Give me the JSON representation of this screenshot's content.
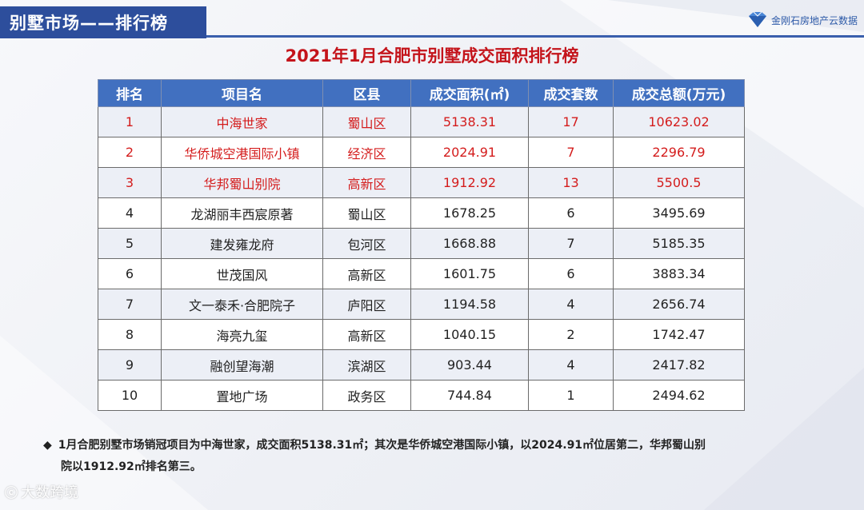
{
  "header": {
    "section_title": "别墅市场——排行榜"
  },
  "brand": {
    "name": "金刚石房地产云数据"
  },
  "title": "2021年1月合肥市别墅成交面积排行榜",
  "table": {
    "columns": [
      "排名",
      "项目名",
      "区县",
      "成交面积(㎡)",
      "成交套数",
      "成交总额(万元)"
    ],
    "rows": [
      [
        "1",
        "中海世家",
        "蜀山区",
        "5138.31",
        "17",
        "10623.02"
      ],
      [
        "2",
        "华侨城空港国际小镇",
        "经济区",
        "2024.91",
        "7",
        "2296.79"
      ],
      [
        "3",
        "华邦蜀山别院",
        "高新区",
        "1912.92",
        "13",
        "5500.5"
      ],
      [
        "4",
        "龙湖丽丰西宸原著",
        "蜀山区",
        "1678.25",
        "6",
        "3495.69"
      ],
      [
        "5",
        "建发雍龙府",
        "包河区",
        "1668.88",
        "7",
        "5185.35"
      ],
      [
        "6",
        "世茂国风",
        "高新区",
        "1601.75",
        "6",
        "3883.34"
      ],
      [
        "7",
        "文一泰禾·合肥院子",
        "庐阳区",
        "1194.58",
        "4",
        "2656.74"
      ],
      [
        "8",
        "海亮九玺",
        "高新区",
        "1040.15",
        "2",
        "1742.47"
      ],
      [
        "9",
        "融创望海潮",
        "滨湖区",
        "903.44",
        "4",
        "2417.82"
      ],
      [
        "10",
        "置地广场",
        "政务区",
        "744.84",
        "1",
        "2494.62"
      ]
    ]
  },
  "note": {
    "bullet": "◆",
    "line1": "1月合肥别墅市场销冠项目为中海世家，成交面积5138.31㎡；其次是华侨城空港国际小镇，以2024.91㎡位居第二，华邦蜀山别",
    "line2": "院以1912.92㎡排名第三。"
  },
  "watermark": {
    "icon": "ⓒ",
    "text": "大数跨境"
  }
}
